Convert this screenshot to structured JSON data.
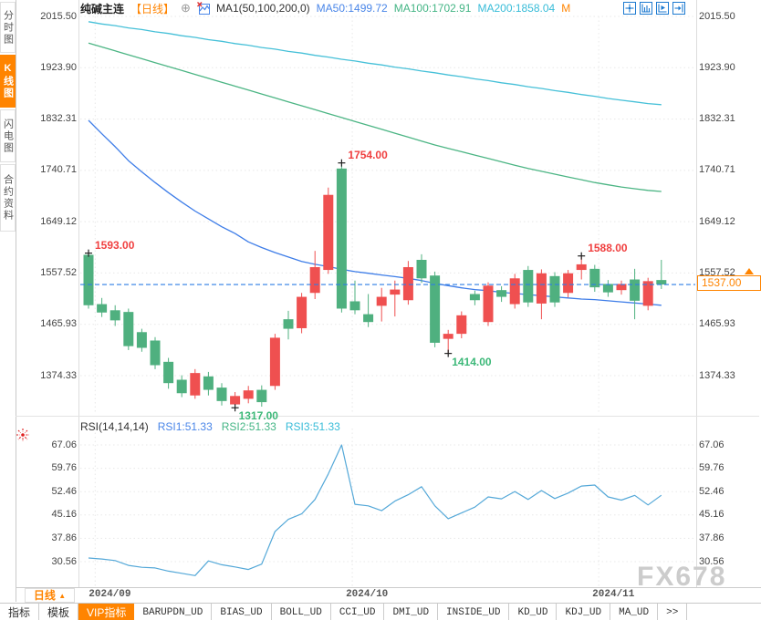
{
  "window": {
    "watermark": "FX678"
  },
  "header": {
    "title": "纯碱主连",
    "period_tag": "【日线】",
    "add_symbol": "⊕",
    "indicator_label": "MA1(50,100,200,0)",
    "ma50": "MA50:1499.72",
    "ma100": "MA100:1702.91",
    "ma200": "MA200:1858.04",
    "m_flag": "M"
  },
  "sidebar": {
    "tabs": [
      {
        "name": "timeshare",
        "label": "分时图",
        "active": false
      },
      {
        "name": "kline",
        "label": "K线图",
        "active": true
      },
      {
        "name": "lightning",
        "label": "闪电图",
        "active": false
      },
      {
        "name": "contract-info",
        "label": "合约资料",
        "active": false
      }
    ]
  },
  "chart_toolbar_icons": [
    {
      "name": "pan-crosshair-icon"
    },
    {
      "name": "axis-scale-icon"
    },
    {
      "name": "axis-play-icon"
    },
    {
      "name": "go-to-latest-icon"
    }
  ],
  "price_badge": {
    "value": "1537.00"
  },
  "rsi_header": {
    "title": "RSI(14,14,14)",
    "rsi1": "RSI1:51.33",
    "rsi2": "RSI2:51.33",
    "rsi3": "RSI3:51.33"
  },
  "footer": {
    "period_label": "日线",
    "period_arrow": "▲",
    "tabs": [
      {
        "name": "indicator",
        "label": "指标",
        "mono": false,
        "active": false
      },
      {
        "name": "template",
        "label": "模板",
        "mono": false,
        "active": false
      },
      {
        "name": "vip-indicator",
        "label": "VIP指标",
        "mono": false,
        "active": true
      },
      {
        "name": "barupdn-ud",
        "label": "BARUPDN_UD",
        "mono": true,
        "active": false
      },
      {
        "name": "bias-ud",
        "label": "BIAS_UD",
        "mono": true,
        "active": false
      },
      {
        "name": "boll-ud",
        "label": "BOLL_UD",
        "mono": true,
        "active": false
      },
      {
        "name": "cci-ud",
        "label": "CCI_UD",
        "mono": true,
        "active": false
      },
      {
        "name": "dmi-ud",
        "label": "DMI_UD",
        "mono": true,
        "active": false
      },
      {
        "name": "inside-ud",
        "label": "INSIDE_UD",
        "mono": true,
        "active": false
      },
      {
        "name": "kd-ud",
        "label": "KD_UD",
        "mono": true,
        "active": false
      },
      {
        "name": "kdj-ud",
        "label": "KDJ_UD",
        "mono": true,
        "active": false
      },
      {
        "name": "ma-ud",
        "label": "MA_UD",
        "mono": true,
        "active": false
      },
      {
        "name": "more",
        "label": ">>",
        "mono": true,
        "active": false
      }
    ]
  },
  "colors": {
    "up": "#ef5050",
    "down": "#4fb07f",
    "ma50": "#3e7de8",
    "ma100": "#4cb584",
    "ma200": "#46c0d8",
    "rsi_line": "#54a8d8",
    "current_price_line": "#2e7de5",
    "accent": "#ff8400",
    "annotation_high": "#f04040",
    "annotation_low": "#3cb878",
    "grid": "#e8e8e8"
  },
  "chart_data": {
    "type": "candlestick",
    "title": "纯碱主连 日线",
    "price_axis": [
      2015.5,
      1923.9,
      1832.31,
      1740.71,
      1649.12,
      1557.52,
      1465.93,
      1374.33
    ],
    "rsi_axis": [
      67.06,
      59.76,
      52.46,
      45.16,
      37.86,
      30.56
    ],
    "x_labels": [
      {
        "label": "2024/09",
        "x_index": 0.5
      },
      {
        "label": "2024/10",
        "x_index": 19.8
      },
      {
        "label": "2024/11",
        "x_index": 38.3
      }
    ],
    "current_price": 1537.0,
    "candles_ochl": [
      [
        1590,
        1500,
        1593,
        1494
      ],
      [
        1502,
        1487,
        1513,
        1479
      ],
      [
        1491,
        1473,
        1500,
        1463
      ],
      [
        1488,
        1427,
        1494,
        1420
      ],
      [
        1452,
        1424,
        1458,
        1417
      ],
      [
        1437,
        1393,
        1443,
        1386
      ],
      [
        1399,
        1361,
        1406,
        1351
      ],
      [
        1367,
        1343,
        1375,
        1336
      ],
      [
        1339,
        1379,
        1386,
        1333
      ],
      [
        1373,
        1349,
        1381,
        1339
      ],
      [
        1353,
        1329,
        1361,
        1321
      ],
      [
        1323,
        1338,
        1345,
        1317
      ],
      [
        1333,
        1348,
        1356,
        1325
      ],
      [
        1349,
        1327,
        1357,
        1319
      ],
      [
        1356,
        1442,
        1449,
        1349
      ],
      [
        1475,
        1458,
        1490,
        1439
      ],
      [
        1459,
        1515,
        1522,
        1450
      ],
      [
        1522,
        1568,
        1597,
        1511
      ],
      [
        1563,
        1697,
        1710,
        1556
      ],
      [
        1744,
        1494,
        1754,
        1487
      ],
      [
        1507,
        1491,
        1544,
        1484
      ],
      [
        1484,
        1470,
        1520,
        1461
      ],
      [
        1499,
        1515,
        1531,
        1471
      ],
      [
        1519,
        1528,
        1544,
        1480
      ],
      [
        1509,
        1568,
        1579,
        1501
      ],
      [
        1581,
        1548,
        1591,
        1540
      ],
      [
        1553,
        1433,
        1560,
        1425
      ],
      [
        1440,
        1449,
        1456,
        1414
      ],
      [
        1449,
        1482,
        1489,
        1441
      ],
      [
        1520,
        1509,
        1526,
        1500
      ],
      [
        1470,
        1535,
        1541,
        1463
      ],
      [
        1527,
        1515,
        1534,
        1506
      ],
      [
        1502,
        1548,
        1556,
        1494
      ],
      [
        1563,
        1505,
        1570,
        1497
      ],
      [
        1503,
        1557,
        1564,
        1475
      ],
      [
        1552,
        1505,
        1559,
        1497
      ],
      [
        1522,
        1557,
        1563,
        1514
      ],
      [
        1563,
        1573,
        1588,
        1546
      ],
      [
        1565,
        1532,
        1572,
        1524
      ],
      [
        1538,
        1523,
        1545,
        1515
      ],
      [
        1527,
        1538,
        1544,
        1519
      ],
      [
        1546,
        1508,
        1565,
        1475
      ],
      [
        1499,
        1543,
        1549,
        1491
      ],
      [
        1545,
        1537,
        1581,
        1529
      ]
    ],
    "ma50": [
      1830,
      1806,
      1783,
      1758,
      1738,
      1719,
      1701,
      1684,
      1668,
      1654,
      1640,
      1628,
      1613,
      1603,
      1594,
      1586,
      1578,
      1573,
      1569,
      1564,
      1560,
      1557,
      1554,
      1551,
      1548,
      1544,
      1539,
      1535,
      1531,
      1528,
      1526,
      1523,
      1521,
      1519,
      1517,
      1515,
      1513,
      1511,
      1510,
      1508,
      1506,
      1504,
      1502,
      1500
    ],
    "ma100": [
      1968,
      1961,
      1954,
      1947,
      1940,
      1933,
      1926,
      1919,
      1912,
      1905,
      1898,
      1891,
      1884,
      1877,
      1870,
      1863,
      1856,
      1849,
      1842,
      1835,
      1828,
      1821,
      1814,
      1807,
      1800,
      1793,
      1786,
      1780,
      1774,
      1768,
      1762,
      1756,
      1750,
      1744,
      1739,
      1734,
      1729,
      1724,
      1719,
      1715,
      1711,
      1708,
      1705,
      1703
    ],
    "ma200": [
      2006,
      2002,
      1999,
      1995,
      1992,
      1988,
      1985,
      1981,
      1978,
      1974,
      1971,
      1967,
      1964,
      1960,
      1957,
      1953,
      1950,
      1946,
      1943,
      1939,
      1936,
      1932,
      1929,
      1925,
      1922,
      1918,
      1915,
      1911,
      1908,
      1904,
      1901,
      1897,
      1894,
      1890,
      1887,
      1883,
      1880,
      1876,
      1873,
      1869,
      1866,
      1863,
      1860,
      1858
    ],
    "rsi": [
      31.7,
      31.4,
      30.9,
      29.4,
      28.8,
      28.6,
      27.6,
      26.9,
      26.2,
      30.8,
      29.6,
      28.9,
      28.1,
      29.8,
      40.0,
      43.8,
      45.5,
      50.0,
      58.0,
      67.06,
      48.5,
      48.0,
      46.5,
      49.5,
      51.5,
      54.0,
      48.0,
      44.0,
      45.8,
      47.6,
      50.8,
      50.2,
      52.5,
      50.0,
      52.8,
      50.3,
      52.0,
      54.2,
      54.5,
      50.8,
      49.8,
      51.3,
      48.3,
      51.33
    ],
    "annotations": [
      {
        "text": "1593.00",
        "candle": 0,
        "price": 1593,
        "kind": "high"
      },
      {
        "text": "1754.00",
        "candle": 19,
        "price": 1754,
        "kind": "high"
      },
      {
        "text": "1317.00",
        "candle": 11,
        "price": 1317,
        "kind": "low"
      },
      {
        "text": "1414.00",
        "candle": 27,
        "price": 1414,
        "kind": "low"
      },
      {
        "text": "1588.00",
        "candle": 37,
        "price": 1588,
        "kind": "high"
      }
    ]
  }
}
